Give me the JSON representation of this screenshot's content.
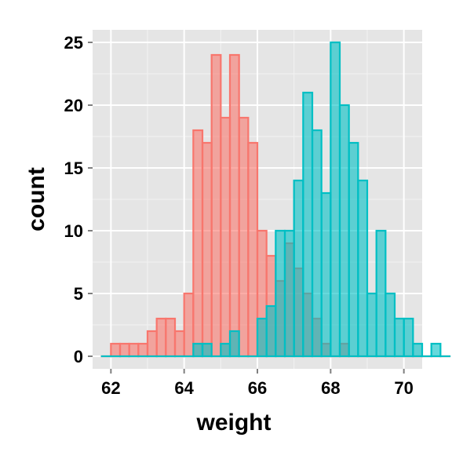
{
  "chart_data": {
    "type": "histogram",
    "title": "",
    "xlabel": "weight",
    "ylabel": "count",
    "xlim": [
      61.5,
      70.5
    ],
    "ylim": [
      -1,
      26
    ],
    "x_ticks": [
      62,
      64,
      66,
      68,
      70
    ],
    "y_ticks": [
      0,
      5,
      10,
      15,
      20,
      25
    ],
    "grid": true,
    "legend": "none",
    "bin_width": 0.25,
    "series": [
      {
        "color": "#F8766D",
        "bins_start": 61.75,
        "counts": [
          0,
          1,
          1,
          1,
          1,
          2,
          3,
          3,
          2,
          5,
          18,
          17,
          24,
          19,
          24,
          19,
          17,
          10,
          8,
          6,
          9,
          7,
          5,
          3,
          1,
          0,
          1,
          0,
          0,
          0,
          0,
          0,
          0,
          0,
          0,
          0,
          0,
          0
        ]
      },
      {
        "color": "#00BFC4",
        "bins_start": 61.75,
        "counts": [
          0,
          0,
          0,
          0,
          0,
          0,
          0,
          0,
          0,
          0,
          1,
          1,
          0,
          1,
          2,
          0,
          0,
          3,
          4,
          10,
          10,
          14,
          21,
          18,
          13,
          25,
          20,
          17,
          14,
          5,
          10,
          5,
          3,
          3,
          1,
          0,
          1,
          0
        ]
      }
    ]
  }
}
